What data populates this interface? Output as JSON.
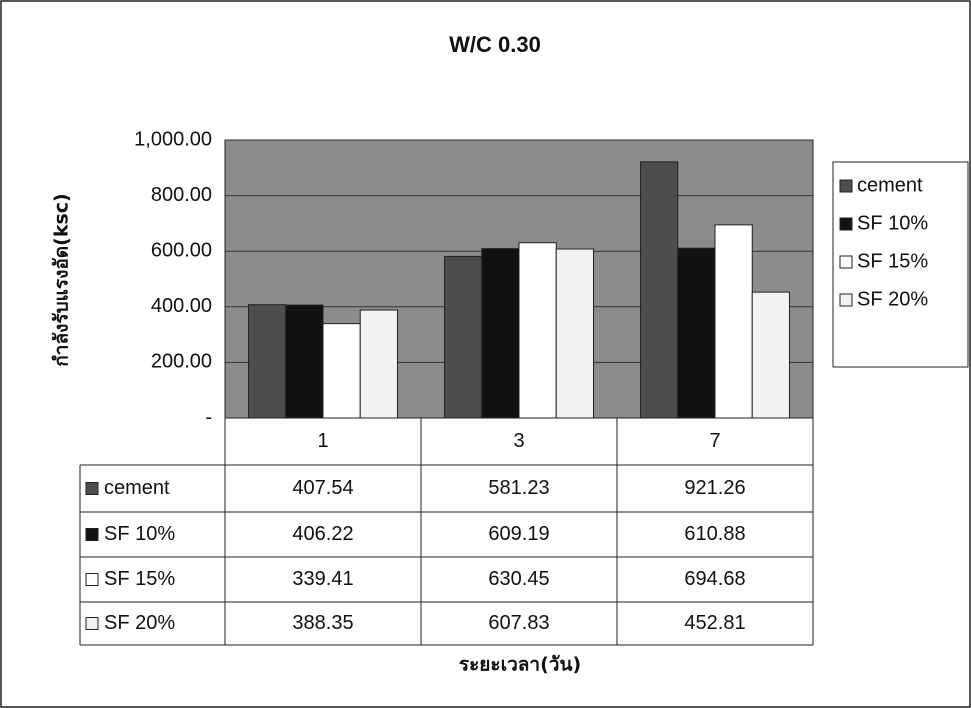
{
  "chart_data": {
    "type": "bar",
    "title": "W/C 0.30",
    "y_label": "กำลังรับแรงอัด(ksc)",
    "x_label": "ระยะเวลา(วัน)",
    "categories": [
      "1",
      "3",
      "7"
    ],
    "series": [
      {
        "name": "cement",
        "color": "#4d4d4d",
        "values": [
          407.54,
          581.23,
          921.26
        ]
      },
      {
        "name": "SF 10%",
        "color": "#111111",
        "values": [
          406.22,
          609.19,
          610.88
        ]
      },
      {
        "name": "SF 15%",
        "color": "#ffffff",
        "values": [
          339.41,
          630.45,
          694.68
        ]
      },
      {
        "name": "SF 20%",
        "color": "#f2f2f2",
        "values": [
          388.35,
          607.83,
          452.81
        ]
      }
    ],
    "ylim": [
      0,
      1000
    ],
    "yticks": [
      {
        "value": 0,
        "label": "-"
      },
      {
        "value": 200,
        "label": "200.00"
      },
      {
        "value": 400,
        "label": "400.00"
      },
      {
        "value": 600,
        "label": "600.00"
      },
      {
        "value": 800,
        "label": "800.00"
      },
      {
        "value": 1000,
        "label": "1,000.00"
      }
    ],
    "grid": true,
    "legend": "right"
  }
}
